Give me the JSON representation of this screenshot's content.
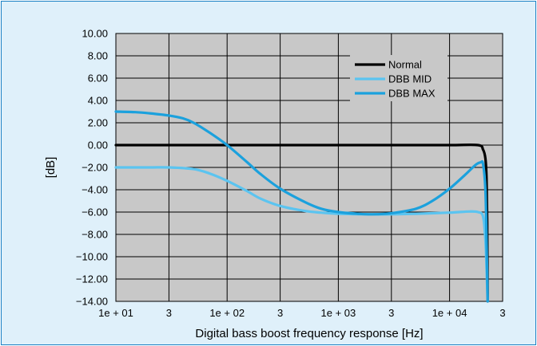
{
  "chart_data": {
    "type": "line",
    "xlabel": "Digital bass boost frequency response [Hz]",
    "ylabel": "[dB]",
    "x_scale": "log",
    "xlim": [
      10,
      30000
    ],
    "ylim": [
      -14,
      10
    ],
    "x_ticks": [
      {
        "value": 10,
        "label": "1e + 01"
      },
      {
        "value": 30,
        "label": "3"
      },
      {
        "value": 100,
        "label": "1e + 02"
      },
      {
        "value": 300,
        "label": "3"
      },
      {
        "value": 1000,
        "label": "1e + 03"
      },
      {
        "value": 3000,
        "label": "3"
      },
      {
        "value": 10000,
        "label": "1e + 04"
      },
      {
        "value": 30000,
        "label": "3"
      }
    ],
    "y_ticks": [
      {
        "value": 10,
        "label": "10.00"
      },
      {
        "value": 8,
        "label": "8.00"
      },
      {
        "value": 6,
        "label": "6.00"
      },
      {
        "value": 4,
        "label": "4.00"
      },
      {
        "value": 2,
        "label": "2.00"
      },
      {
        "value": 0,
        "label": "0.00"
      },
      {
        "value": -2,
        "label": "−2.00"
      },
      {
        "value": -4,
        "label": "−4.00"
      },
      {
        "value": -6,
        "label": "−6.00"
      },
      {
        "value": -8,
        "label": "−8.00"
      },
      {
        "value": -10,
        "label": "−10.00"
      },
      {
        "value": -12,
        "label": "−12.00"
      },
      {
        "value": -14,
        "label": "−14.00"
      }
    ],
    "grid": true,
    "legend_position": "top-right",
    "series": [
      {
        "name": "Normal",
        "color": "#000000",
        "x": [
          10,
          30,
          100,
          300,
          1000,
          3000,
          10000,
          18000,
          20000,
          21000,
          21500,
          21800,
          22000
        ],
        "y": [
          0,
          0,
          0,
          0,
          0,
          0,
          0,
          0,
          -0.4,
          -1.2,
          -3,
          -7,
          -14
        ]
      },
      {
        "name": "DBB MID",
        "color": "#5bc4f0",
        "x": [
          10,
          20,
          30,
          50,
          70,
          100,
          150,
          200,
          300,
          500,
          700,
          1000,
          2000,
          3000,
          5000,
          10000,
          15000,
          18000,
          20000,
          21000,
          21500,
          22000
        ],
        "y": [
          -2.0,
          -2.0,
          -2.0,
          -2.15,
          -2.55,
          -3.2,
          -4.1,
          -4.8,
          -5.45,
          -5.9,
          -6.05,
          -6.15,
          -6.2,
          -6.2,
          -6.15,
          -6.05,
          -5.95,
          -6.0,
          -6.4,
          -8.5,
          -11,
          -14
        ]
      },
      {
        "name": "DBB MAX",
        "color": "#1ba1dd",
        "x": [
          10,
          15,
          20,
          30,
          40,
          50,
          70,
          100,
          150,
          200,
          300,
          500,
          700,
          1000,
          1500,
          2000,
          3000,
          5000,
          7000,
          10000,
          14000,
          17000,
          19000,
          20000,
          21000,
          21500,
          22000
        ],
        "y": [
          3.0,
          2.95,
          2.85,
          2.65,
          2.4,
          2.0,
          1.1,
          0.0,
          -1.5,
          -2.6,
          -3.9,
          -5.1,
          -5.7,
          -6.0,
          -6.15,
          -6.2,
          -6.1,
          -5.7,
          -5.0,
          -3.9,
          -2.6,
          -1.8,
          -1.55,
          -1.7,
          -4,
          -8.5,
          -14
        ]
      }
    ]
  }
}
